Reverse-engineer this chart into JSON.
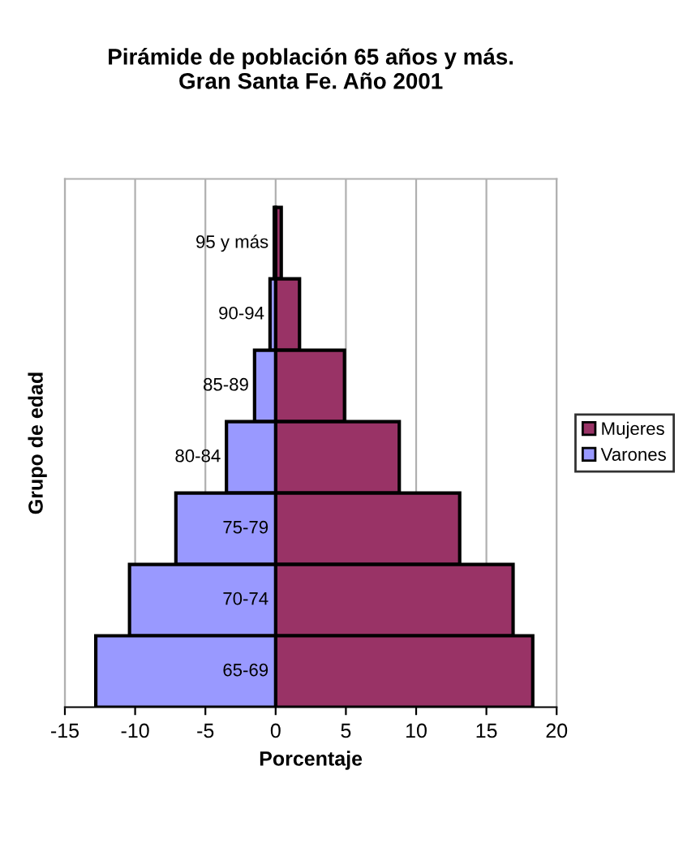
{
  "chart_data": {
    "type": "bar",
    "orientation": "horizontal",
    "title": "Pirámide de población 65 años y más.\nGran Santa Fe. Año 2001",
    "xlabel": "Porcentaje",
    "ylabel": "Grupo de edad",
    "categories": [
      "95 y más",
      "90-94",
      "85-89",
      "80-84",
      "75-79",
      "70-74",
      "65-69"
    ],
    "series": [
      {
        "name": "Mujeres",
        "color": "#993366",
        "values": [
          0.4,
          1.7,
          4.9,
          8.8,
          13.1,
          16.9,
          18.3
        ]
      },
      {
        "name": "Varones",
        "color": "#9999ff",
        "values": [
          -0.1,
          -0.4,
          -1.5,
          -3.5,
          -7.1,
          -10.4,
          -12.8
        ]
      }
    ],
    "xlim": [
      -15,
      20
    ],
    "xticks": [
      -15,
      -10,
      -5,
      0,
      5,
      10,
      15,
      20
    ],
    "grid": "x",
    "legend": "right",
    "stacked": true
  }
}
